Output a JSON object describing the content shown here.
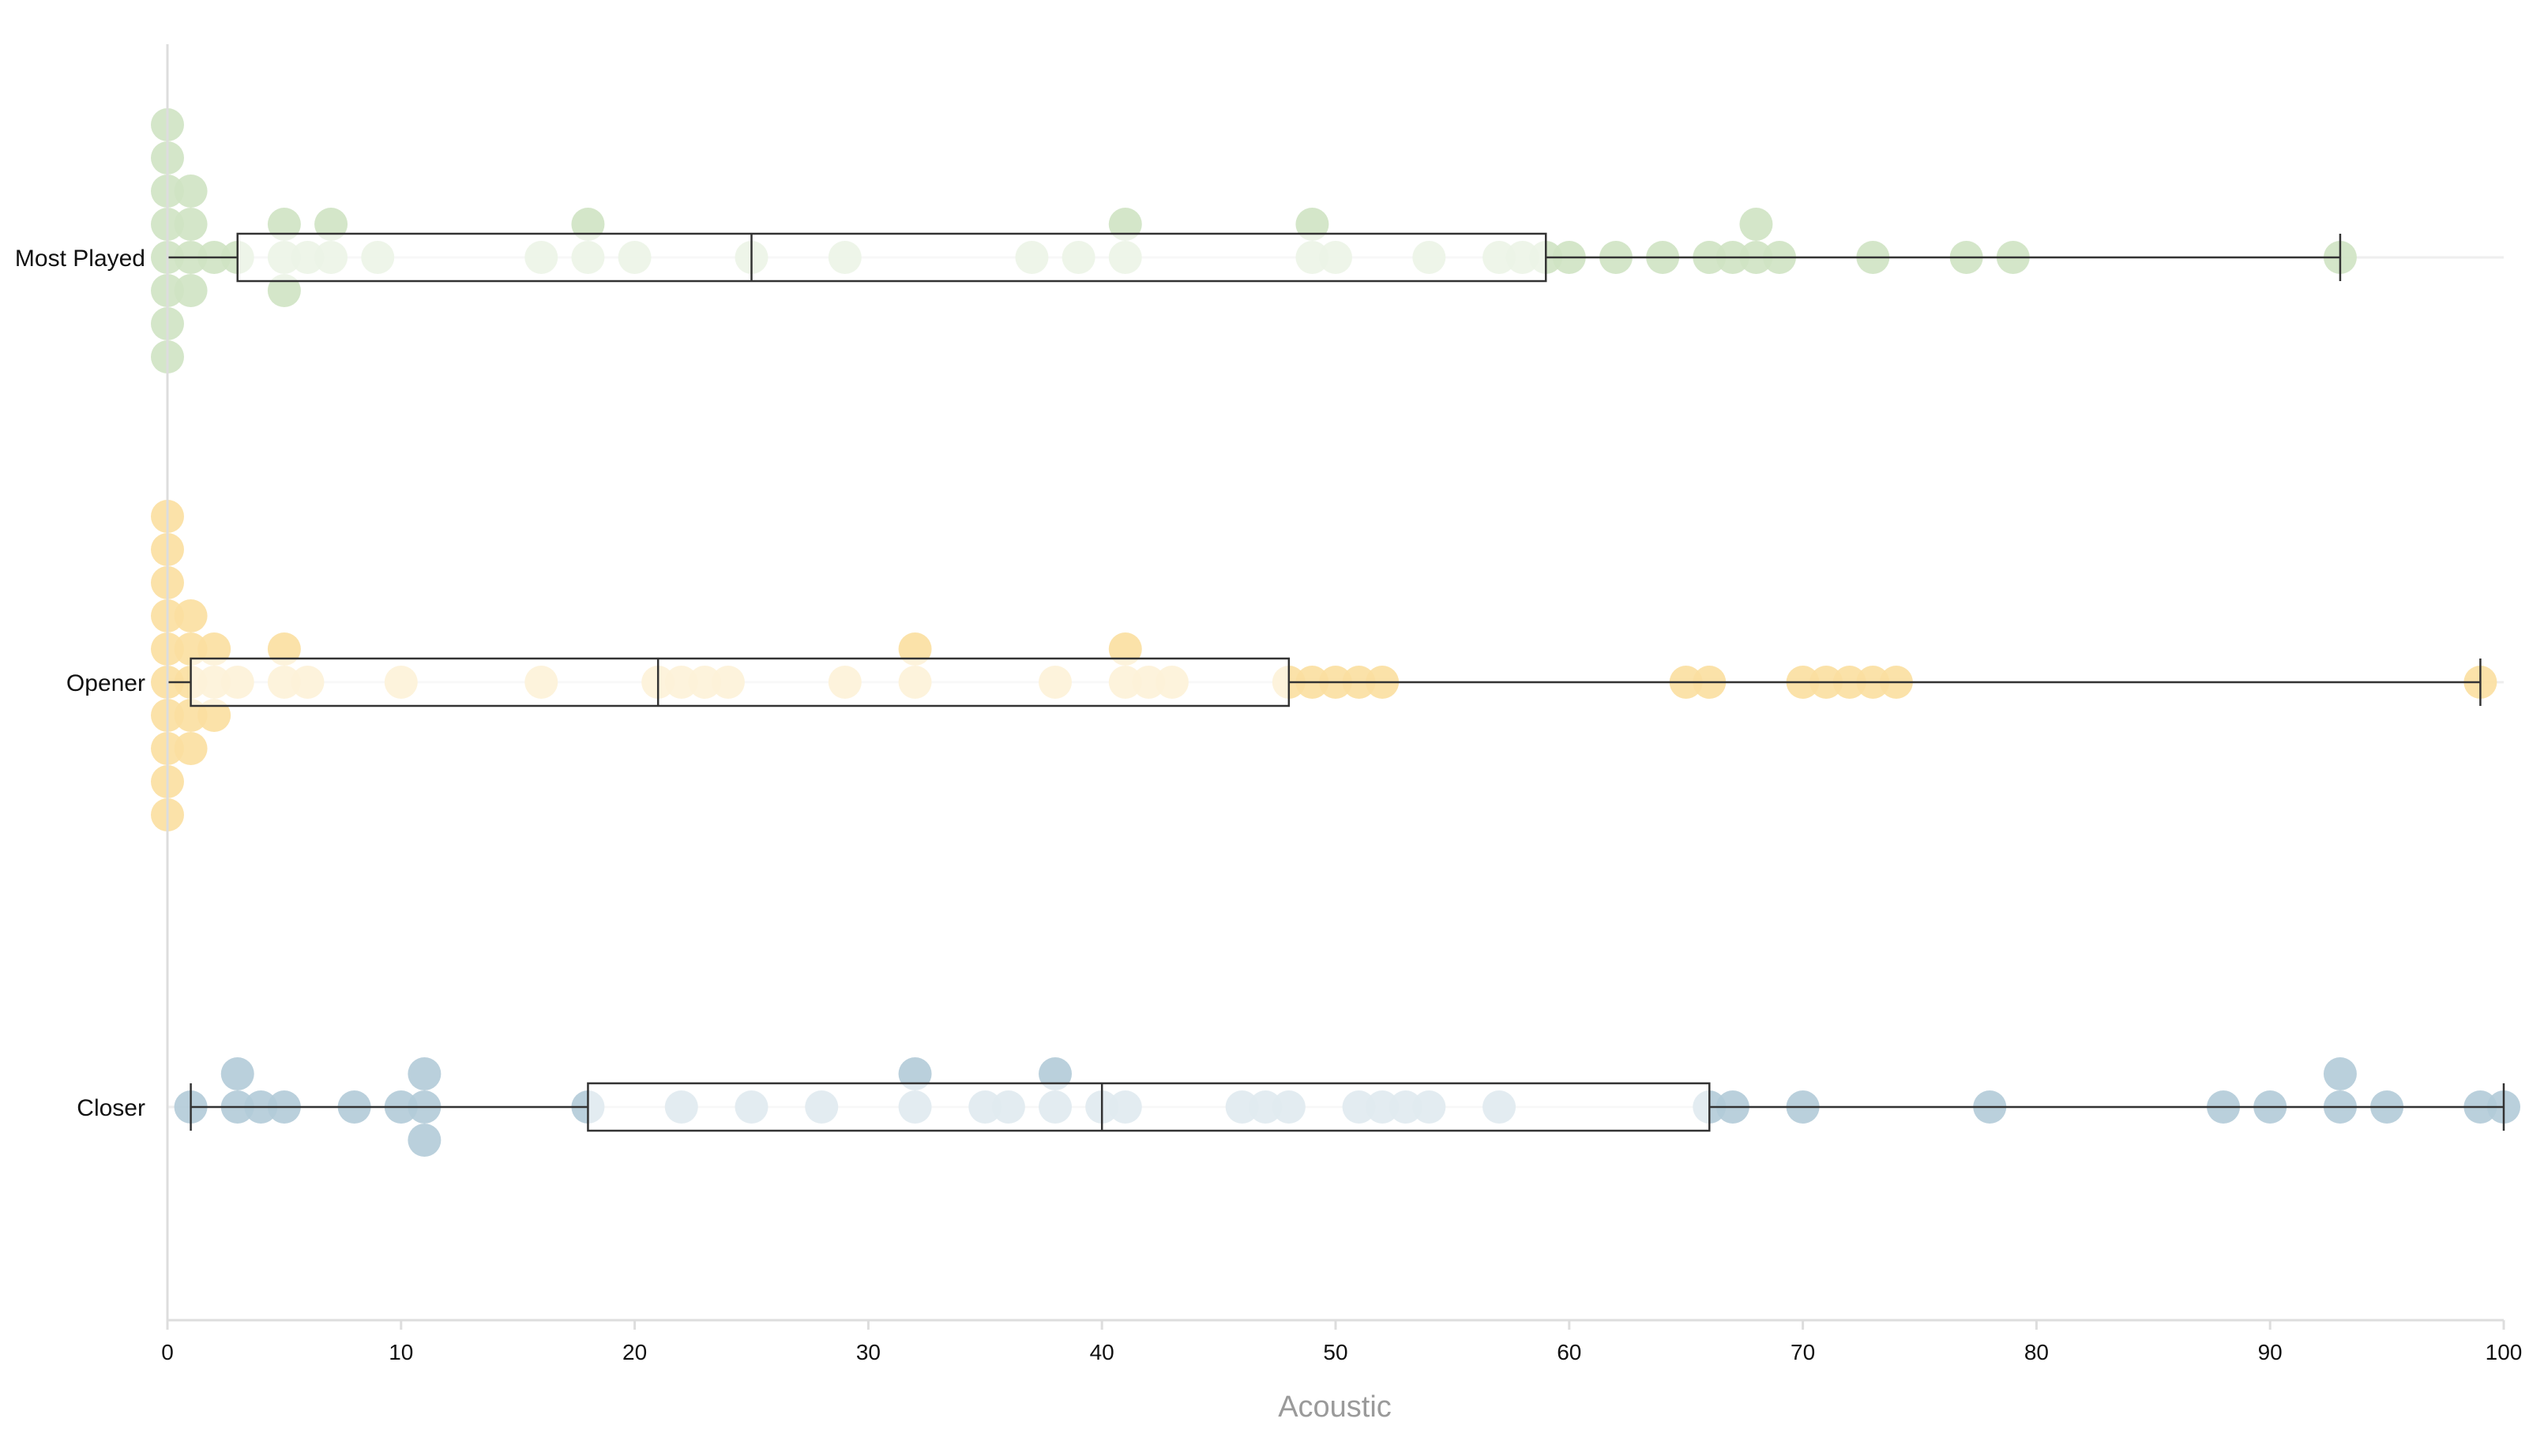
{
  "chart_data": {
    "type": "scatter",
    "subtype": "beeswarm-with-boxplot",
    "xlabel": "Acoustic",
    "xlim": [
      0,
      100
    ],
    "xticks": [
      0,
      10,
      20,
      30,
      40,
      50,
      60,
      70,
      80,
      90,
      100
    ],
    "grid": false,
    "categories": [
      "Most Played",
      "Opener",
      "Closer"
    ],
    "series": [
      {
        "name": "Most Played",
        "color": "#cfe3c3",
        "box": {
          "min": 0,
          "q1": 3,
          "median": 25,
          "q3": 59,
          "max": 93
        },
        "points": [
          0,
          0,
          0,
          0,
          0,
          0,
          0,
          0,
          1,
          1,
          1,
          1,
          2,
          3,
          5,
          5,
          5,
          6,
          7,
          7,
          9,
          16,
          18,
          18,
          20,
          25,
          29,
          37,
          39,
          41,
          41,
          49,
          49,
          50,
          54,
          57,
          58,
          59,
          60,
          62,
          64,
          66,
          67,
          68,
          68,
          69,
          73,
          77,
          79,
          93
        ]
      },
      {
        "name": "Opener",
        "color": "#fbdfa0",
        "box": {
          "min": 0,
          "q1": 1,
          "median": 21,
          "q3": 48,
          "max": 99
        },
        "points": [
          0,
          0,
          0,
          0,
          0,
          0,
          0,
          0,
          0,
          0,
          1,
          1,
          1,
          1,
          1,
          2,
          2,
          2,
          3,
          5,
          5,
          6,
          10,
          16,
          21,
          22,
          23,
          24,
          29,
          32,
          32,
          38,
          41,
          41,
          42,
          43,
          48,
          49,
          50,
          51,
          52,
          65,
          66,
          70,
          71,
          72,
          73,
          74,
          99
        ]
      },
      {
        "name": "Closer",
        "color": "#b3cbd8",
        "box": {
          "min": 1,
          "q1": 18,
          "median": 40,
          "q3": 66,
          "max": 100
        },
        "points": [
          1,
          3,
          3,
          4,
          5,
          8,
          10,
          11,
          11,
          11,
          18,
          22,
          25,
          28,
          32,
          32,
          35,
          36,
          38,
          38,
          40,
          41,
          46,
          47,
          48,
          51,
          52,
          53,
          54,
          57,
          66,
          67,
          70,
          78,
          88,
          90,
          93,
          93,
          95,
          99,
          100
        ]
      }
    ]
  }
}
